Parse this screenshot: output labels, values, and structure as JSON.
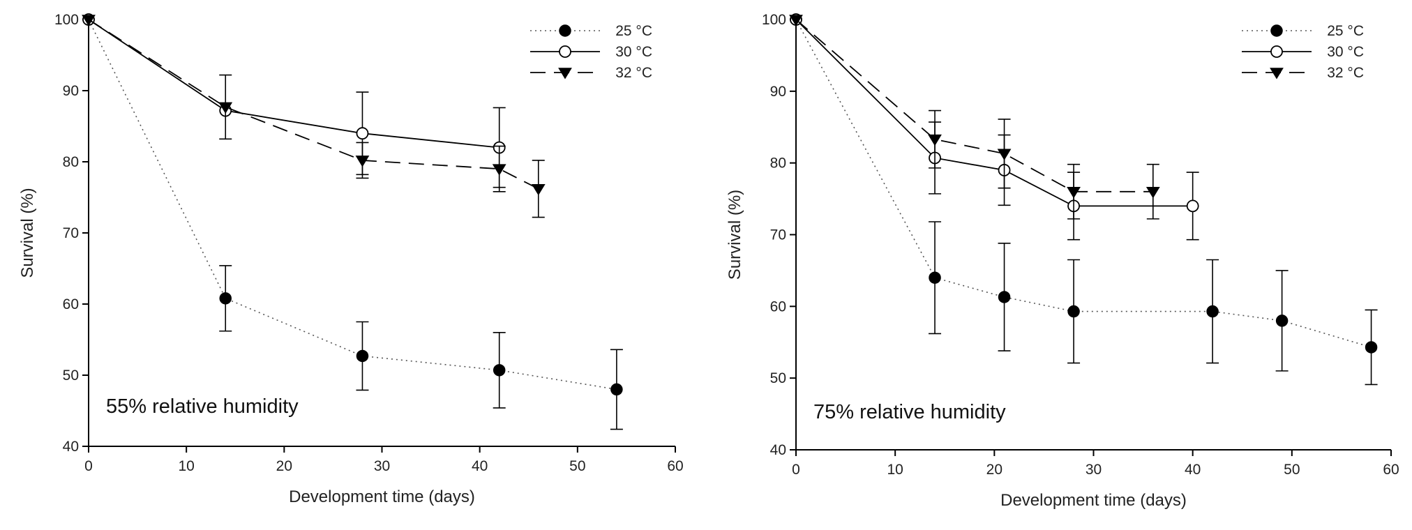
{
  "chart_data": [
    {
      "type": "line",
      "annotation": "55% relative humidity",
      "xlabel": "Development time (days)",
      "ylabel": "Survival (%)",
      "xlim": [
        0,
        60
      ],
      "ylim": [
        40,
        100
      ],
      "xticks": [
        0,
        10,
        20,
        30,
        40,
        50,
        60
      ],
      "yticks": [
        40,
        50,
        60,
        70,
        80,
        90,
        100
      ],
      "legend_position": "top-right",
      "series": [
        {
          "name": "25 °C",
          "marker": "filled-circle",
          "line": "dotted",
          "x": [
            0,
            14,
            28,
            42,
            54
          ],
          "y": [
            100,
            60.8,
            52.7,
            50.7,
            48.0
          ],
          "err": [
            0,
            4.6,
            4.8,
            5.3,
            5.6
          ]
        },
        {
          "name": "30 °C",
          "marker": "open-circle",
          "line": "solid",
          "x": [
            0,
            14,
            28,
            42
          ],
          "y": [
            100,
            87.2,
            84.0,
            82.0
          ],
          "err": [
            0,
            0,
            5.8,
            5.6
          ]
        },
        {
          "name": "32 °C",
          "marker": "filled-triangle-down",
          "line": "dashed",
          "x": [
            0,
            14,
            28,
            42,
            46
          ],
          "y": [
            100,
            87.7,
            80.2,
            79.0,
            76.2
          ],
          "err": [
            0,
            4.5,
            2.5,
            3.2,
            4.0
          ]
        }
      ]
    },
    {
      "type": "line",
      "annotation": "75% relative humidity",
      "xlabel": "Development time (days)",
      "ylabel": "Survival (%)",
      "xlim": [
        0,
        60
      ],
      "ylim": [
        40,
        100
      ],
      "xticks": [
        0,
        10,
        20,
        30,
        40,
        50,
        60
      ],
      "yticks": [
        40,
        50,
        60,
        70,
        80,
        90,
        100
      ],
      "legend_position": "top-right",
      "series": [
        {
          "name": "25 °C",
          "marker": "filled-circle",
          "line": "dotted",
          "x": [
            0,
            14,
            21,
            28,
            42,
            49,
            58
          ],
          "y": [
            100,
            64.0,
            61.3,
            59.3,
            59.3,
            58.0,
            54.3
          ],
          "err": [
            0,
            7.8,
            7.5,
            7.2,
            7.2,
            7.0,
            5.2
          ]
        },
        {
          "name": "30 °C",
          "marker": "open-circle",
          "line": "solid",
          "x": [
            0,
            14,
            21,
            28,
            40
          ],
          "y": [
            100,
            80.7,
            79.0,
            74.0,
            74.0
          ],
          "err": [
            0,
            5.0,
            4.9,
            4.7,
            4.7
          ]
        },
        {
          "name": "32 °C",
          "marker": "filled-triangle-down",
          "line": "dashed",
          "x": [
            0,
            14,
            21,
            28,
            36
          ],
          "y": [
            100,
            83.3,
            81.3,
            76.0,
            76.0
          ],
          "err": [
            0,
            4.0,
            4.8,
            3.8,
            3.8
          ]
        }
      ]
    }
  ]
}
